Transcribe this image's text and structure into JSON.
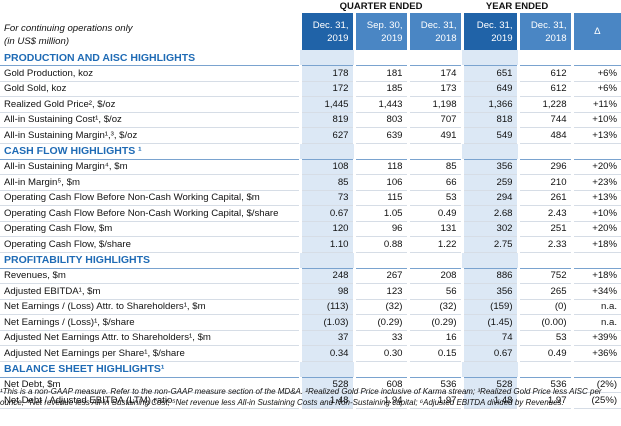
{
  "header": {
    "groups": [
      "QUARTER ENDED",
      "YEAR ENDED"
    ],
    "note_lines": [
      "For continuing operations only",
      "(in US$ million)"
    ],
    "columns": [
      [
        "Dec. 31,",
        "2019"
      ],
      [
        "Sep. 30,",
        "2019"
      ],
      [
        "Dec. 31,",
        "2018"
      ],
      [
        "Dec. 31,",
        "2019"
      ],
      [
        "Dec. 31,",
        "2018"
      ],
      [
        "Δ"
      ]
    ]
  },
  "sections": [
    {
      "title": "PRODUCTION AND AISC HIGHLIGHTS",
      "rows": [
        {
          "label": "Gold Production, koz",
          "values": [
            "178",
            "181",
            "174",
            "651",
            "612",
            "+6%"
          ]
        },
        {
          "label": "Gold Sold, koz",
          "values": [
            "172",
            "185",
            "173",
            "649",
            "612",
            "+6%"
          ]
        },
        {
          "label": "Realized Gold Price², $/oz",
          "values": [
            "1,445",
            "1,443",
            "1,198",
            "1,366",
            "1,228",
            "+11%"
          ]
        },
        {
          "label": "All-in Sustaining Cost¹, $/oz",
          "values": [
            "819",
            "803",
            "707",
            "818",
            "744",
            "+10%"
          ]
        },
        {
          "label": "All-in Sustaining Margin¹,³, $/oz",
          "values": [
            "627",
            "639",
            "491",
            "549",
            "484",
            "+13%"
          ]
        }
      ]
    },
    {
      "title": "CASH FLOW HIGHLIGHTS ¹",
      "rows": [
        {
          "label": "All-in Sustaining Margin⁴, $m",
          "values": [
            "108",
            "118",
            "85",
            "356",
            "296",
            "+20%"
          ]
        },
        {
          "label": "All-in Margin⁵, $m",
          "values": [
            "85",
            "106",
            "66",
            "259",
            "210",
            "+23%"
          ]
        },
        {
          "label": "Operating Cash Flow Before Non-Cash Working Capital, $m",
          "values": [
            "73",
            "115",
            "53",
            "294",
            "261",
            "+13%"
          ]
        },
        {
          "label": "Operating Cash Flow Before Non-Cash Working Capital, $/share",
          "values": [
            "0.67",
            "1.05",
            "0.49",
            "2.68",
            "2.43",
            "+10%"
          ]
        },
        {
          "label": "Operating Cash Flow, $m",
          "values": [
            "120",
            "96",
            "131",
            "302",
            "251",
            "+20%"
          ]
        },
        {
          "label": "Operating Cash Flow, $/share",
          "values": [
            "1.10",
            "0.88",
            "1.22",
            "2.75",
            "2.33",
            "+18%"
          ]
        }
      ]
    },
    {
      "title": "PROFITABILITY HIGHLIGHTS",
      "rows": [
        {
          "label": "Revenues, $m",
          "values": [
            "248",
            "267",
            "208",
            "886",
            "752",
            "+18%"
          ]
        },
        {
          "label": "Adjusted EBITDA¹, $m",
          "values": [
            "98",
            "123",
            "56",
            "356",
            "265",
            "+34%"
          ]
        },
        {
          "label": "Net Earnings / (Loss) Attr. to Shareholders¹, $m",
          "values": [
            "(113)",
            "(32)",
            "(32)",
            "(159)",
            "(0)",
            "n.a."
          ]
        },
        {
          "label": "Net Earnings / (Loss)¹, $/share",
          "values": [
            "(1.03)",
            "(0.29)",
            "(0.29)",
            "(1.45)",
            "(0.00)",
            "n.a."
          ]
        },
        {
          "label": "Adjusted Net Earnings Attr. to Shareholders¹, $m",
          "values": [
            "37",
            "33",
            "16",
            "74",
            "53",
            "+39%"
          ]
        },
        {
          "label": "Adjusted Net Earnings per Share¹, $/share",
          "values": [
            "0.34",
            "0.30",
            "0.15",
            "0.67",
            "0.49",
            "+36%"
          ]
        }
      ]
    },
    {
      "title": "BALANCE SHEET HIGHLIGHTS¹",
      "rows": [
        {
          "label": "Net Debt, $m",
          "values": [
            "528",
            "608",
            "536",
            "528",
            "536",
            "(2%)"
          ]
        },
        {
          "label": "Net Debt / Adjusted EBITDA (LTM) ratio",
          "values": [
            "1.48",
            "1.94",
            "1.97",
            "1.48",
            "1.97",
            "(25%)"
          ]
        }
      ]
    }
  ],
  "footnote": "¹This is a non-GAAP measure. Refer to the non-GAAP measure section of the MD&A. ²Realized Gold Price inclusive of Karma stream; ³Realized Gold Price less AISC per ounce; ⁴Net revenue less All-in Sustaining Cost; ⁵Net revenue less All-in Sustaining Costs and Non-Sustaining capital; ⁶Adjusted EBITDA divided by Revenues."
}
